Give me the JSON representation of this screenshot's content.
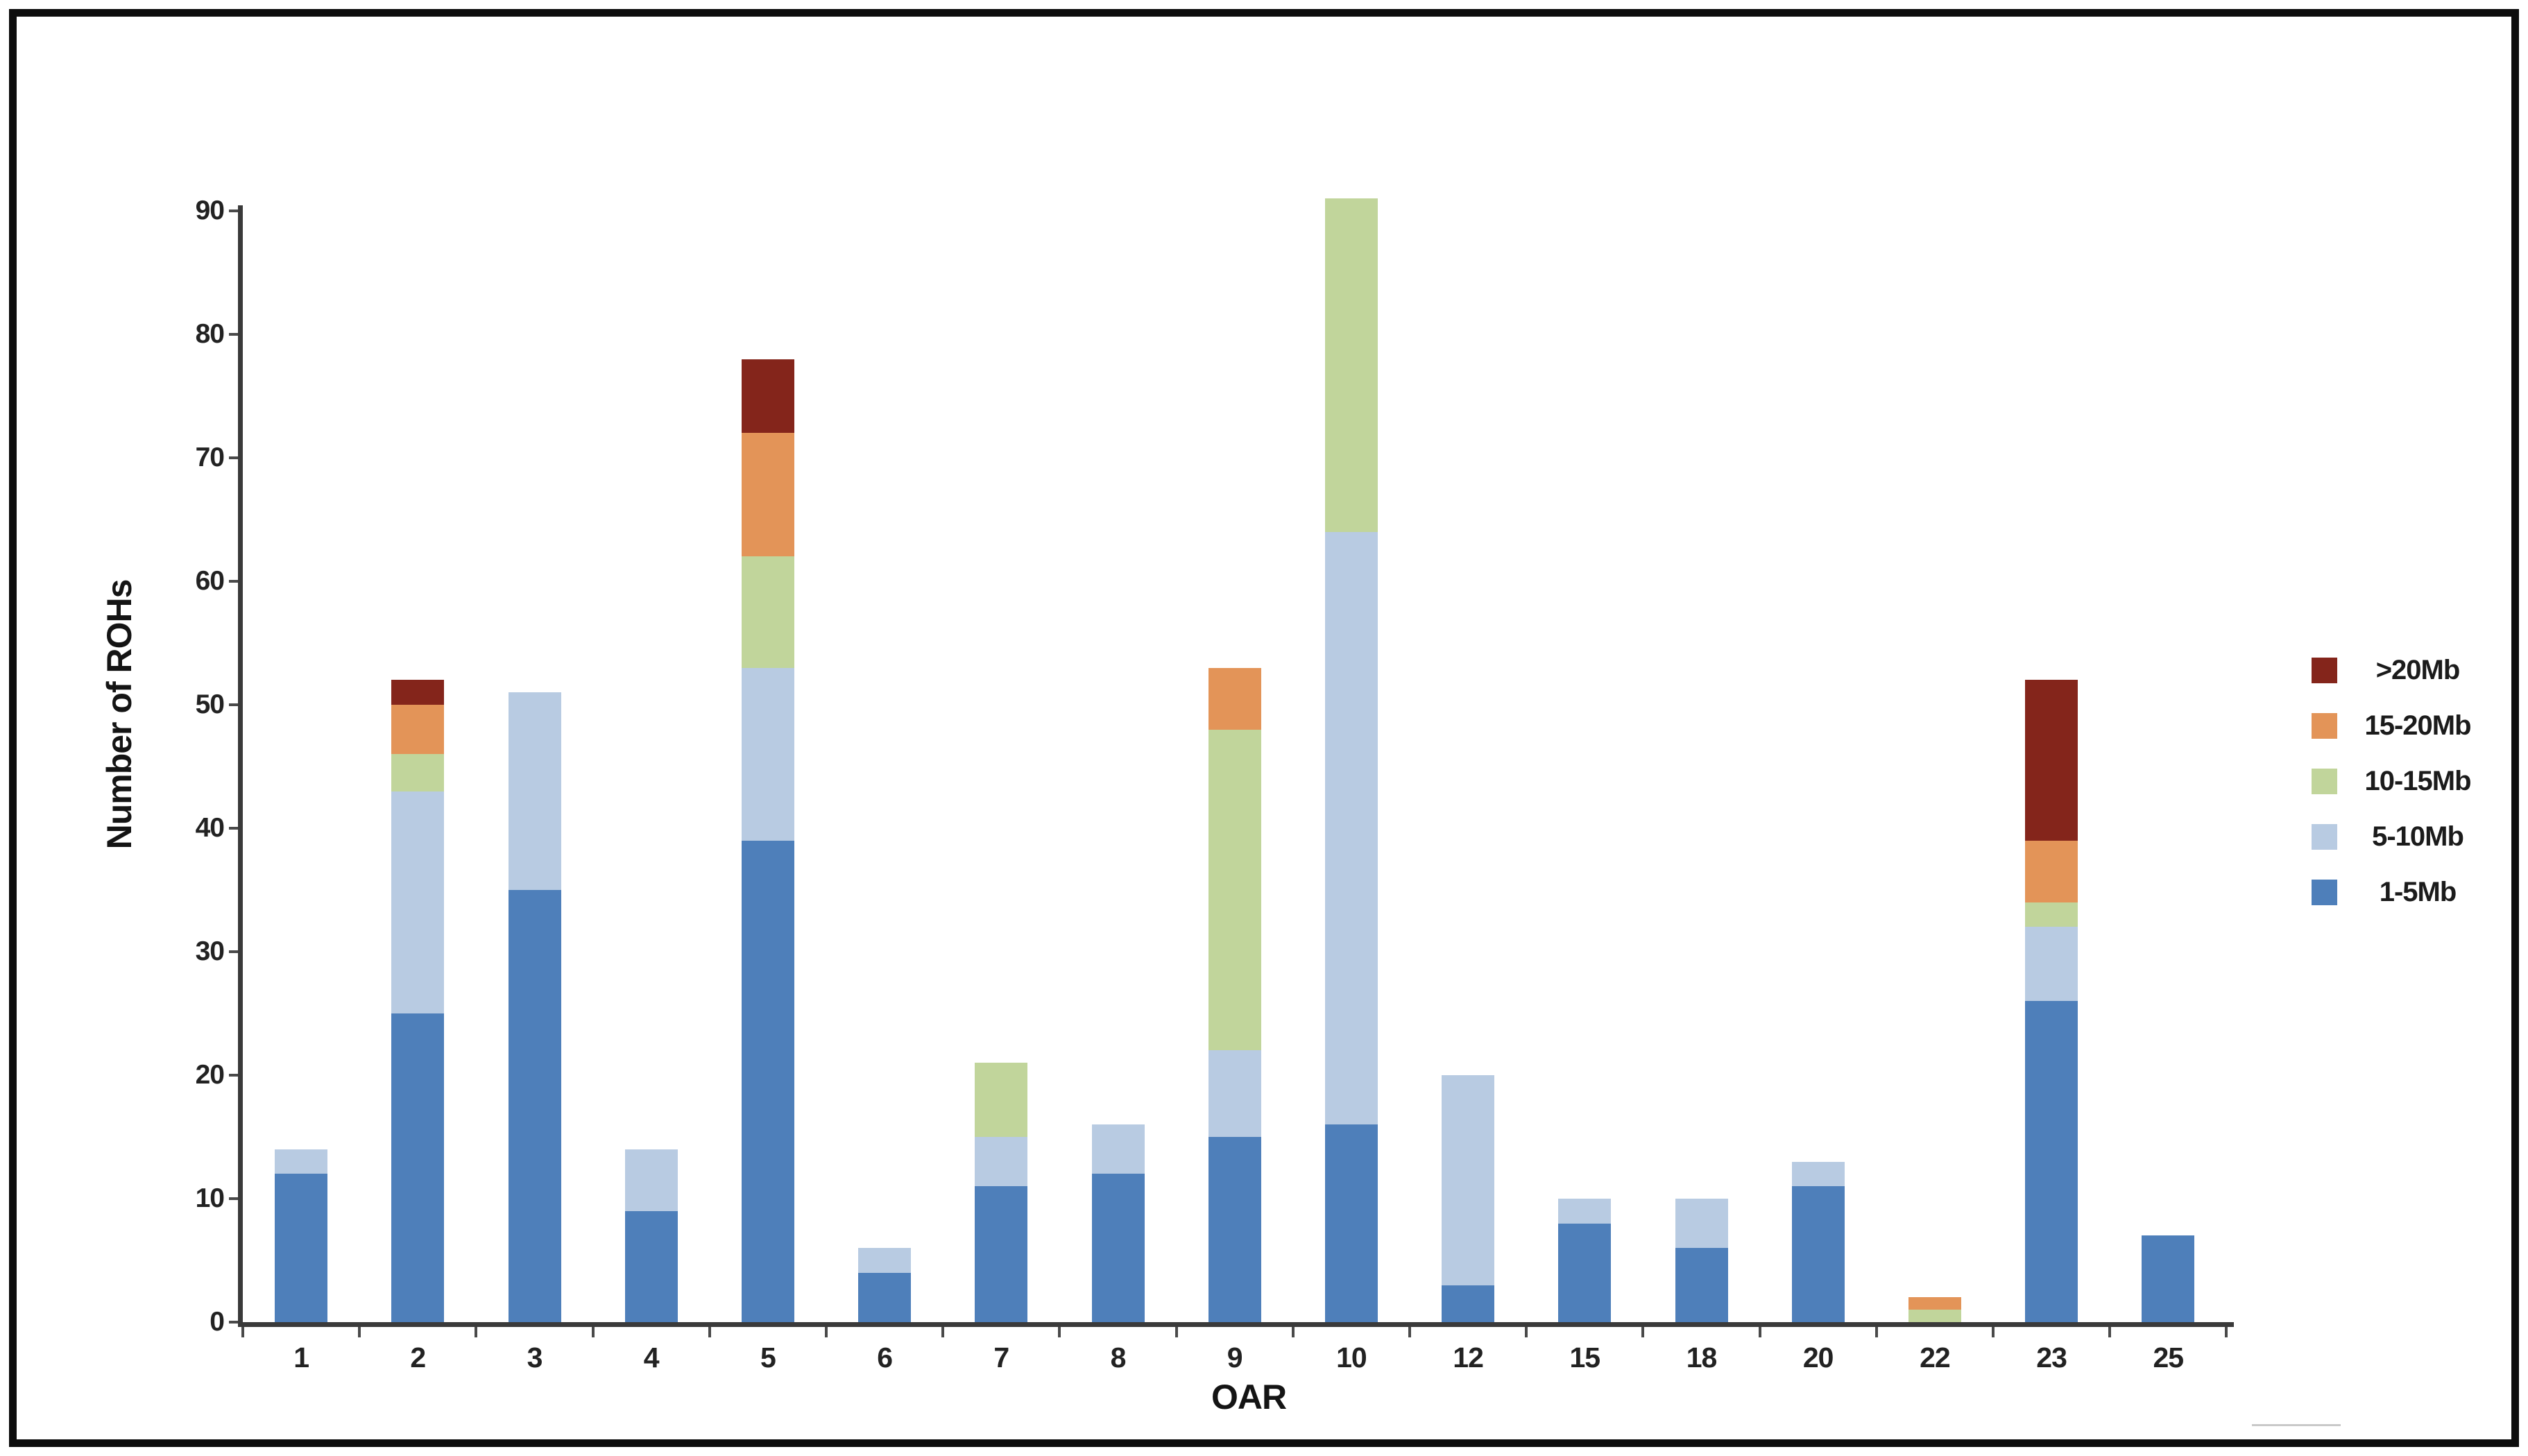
{
  "chart_data": {
    "type": "bar",
    "stacked": true,
    "title": "",
    "xlabel": "OAR",
    "ylabel": "Number of ROHs",
    "ylim": [
      0,
      90
    ],
    "yticks": [
      0,
      10,
      20,
      30,
      40,
      50,
      60,
      70,
      80,
      90
    ],
    "grid": false,
    "legend_position": "right-middle",
    "categories": [
      "1",
      "2",
      "3",
      "4",
      "5",
      "6",
      "7",
      "8",
      "9",
      "10",
      "12",
      "15",
      "18",
      "20",
      "22",
      "23",
      "25"
    ],
    "series": [
      {
        "name": "1-5Mb",
        "color": "#4E7FBA",
        "values": [
          12,
          25,
          35,
          9,
          39,
          4,
          11,
          12,
          15,
          16,
          3,
          8,
          6,
          11,
          0,
          26,
          7
        ]
      },
      {
        "name": "5-10Mb",
        "color": "#B8CBE2",
        "values": [
          2,
          18,
          16,
          5,
          14,
          2,
          4,
          4,
          7,
          48,
          17,
          2,
          4,
          2,
          0,
          6,
          0
        ]
      },
      {
        "name": "10-15Mb",
        "color": "#C1D59B",
        "values": [
          0,
          3,
          0,
          0,
          9,
          0,
          6,
          0,
          26,
          27,
          0,
          0,
          0,
          0,
          1,
          2,
          0
        ]
      },
      {
        "name": "15-20Mb",
        "color": "#E39458",
        "values": [
          0,
          4,
          0,
          0,
          10,
          0,
          0,
          0,
          5,
          0,
          0,
          0,
          0,
          0,
          1,
          5,
          0
        ]
      },
      {
        "name": ">20Mb",
        "color": "#84251B",
        "values": [
          0,
          2,
          0,
          0,
          6,
          0,
          0,
          0,
          0,
          0,
          0,
          0,
          0,
          0,
          0,
          13,
          0
        ]
      }
    ],
    "legend_order": [
      ">20Mb",
      "15-20Mb",
      "10-15Mb",
      "5-10Mb",
      "1-5Mb"
    ]
  },
  "colors": {
    "axis": "#3a3a3a",
    "frame": "#0d0d0d",
    "background": "#ffffff"
  }
}
